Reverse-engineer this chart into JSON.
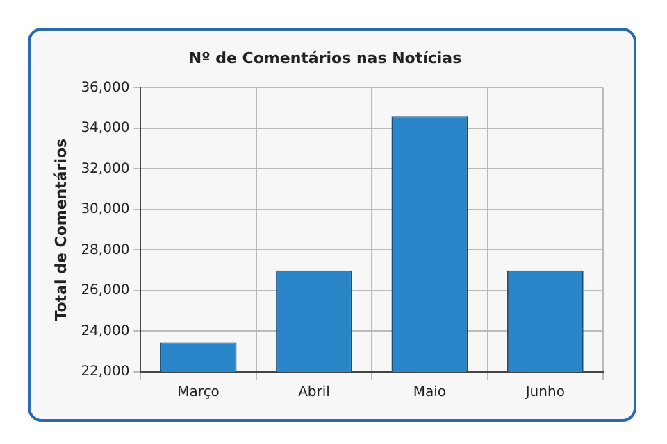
{
  "chart_data": {
    "type": "bar",
    "title": "Nº de Comentários nas Notícias",
    "ylabel": "Total de Comentários",
    "categories": [
      "Março",
      "Abril",
      "Maio",
      "Junho"
    ],
    "values": [
      23450,
      27000,
      34600,
      27000
    ],
    "color": "#2a86c8",
    "ylim": [
      22000,
      36000
    ],
    "yticks": [
      {
        "value": 22000,
        "label": "22,000"
      },
      {
        "value": 24000,
        "label": "24,000"
      },
      {
        "value": 26000,
        "label": "26,000"
      },
      {
        "value": 28000,
        "label": "28,000"
      },
      {
        "value": 30000,
        "label": "30,000"
      },
      {
        "value": 32000,
        "label": "32,000"
      },
      {
        "value": 34000,
        "label": "34,000"
      },
      {
        "value": 36000,
        "label": "36,000"
      }
    ],
    "grid": true
  }
}
